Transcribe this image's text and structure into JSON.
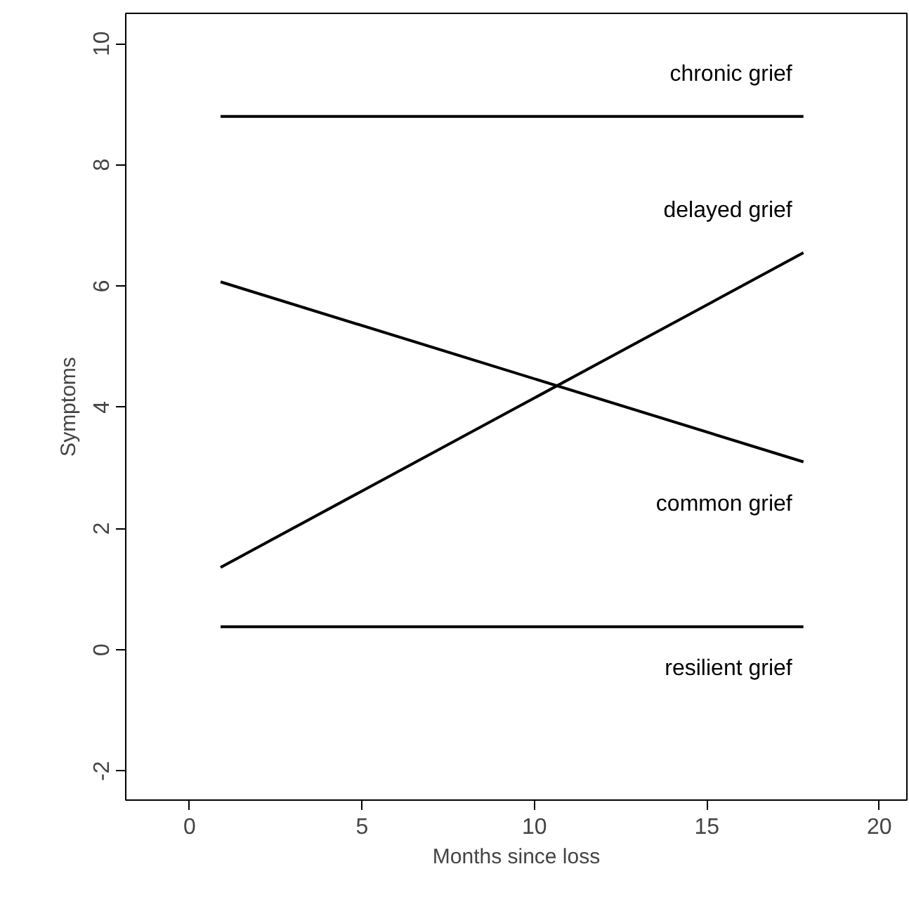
{
  "chart_data": {
    "type": "line",
    "xlabel": "Months since loss",
    "ylabel": "Symptoms",
    "x": [
      0.9,
      17.8
    ],
    "series": [
      {
        "name": "chronic grief",
        "color": "#000000",
        "values": [
          8.8,
          8.8
        ]
      },
      {
        "name": "common grief",
        "color": "#000000",
        "values": [
          6.07,
          3.1
        ]
      },
      {
        "name": "delayed grief",
        "color": "#000000",
        "values": [
          1.36,
          6.55
        ]
      },
      {
        "name": "resilient grief",
        "color": "#000000",
        "values": [
          0.38,
          0.38
        ]
      }
    ],
    "xlim": [
      -1.85,
      20.8
    ],
    "ylim": [
      -2.48,
      10.5
    ],
    "xticks": [
      0,
      5,
      10,
      15,
      20
    ],
    "yticks": [
      -2,
      0,
      2,
      4,
      6,
      8,
      10
    ],
    "grid": false,
    "legend": false,
    "marker": "none",
    "line_style": "solid"
  }
}
